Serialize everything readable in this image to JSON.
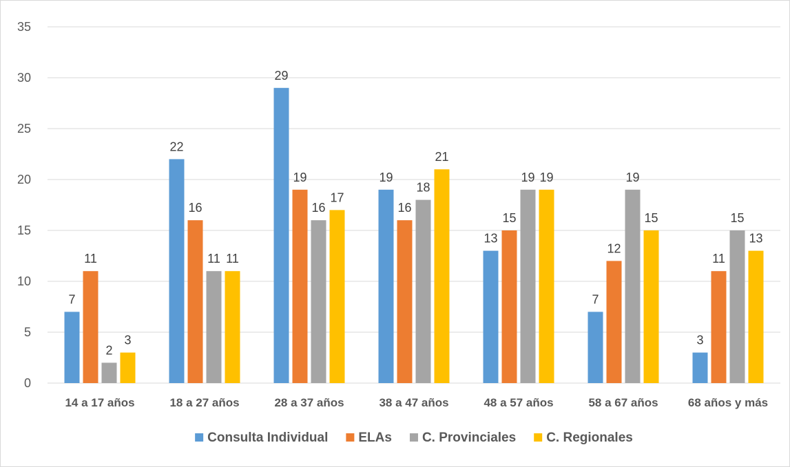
{
  "chart_data": {
    "type": "bar",
    "categories": [
      "14 a 17 años",
      "18 a 27 años",
      "28 a 37 años",
      "38 a 47 años",
      "48 a 57 años",
      "58 a 67 años",
      "68 años y más"
    ],
    "series": [
      {
        "name": "Consulta Individual",
        "color": "#5b9bd5",
        "values": [
          7,
          22,
          29,
          19,
          13,
          7,
          3
        ]
      },
      {
        "name": "ELAs",
        "color": "#ed7d31",
        "values": [
          11,
          16,
          19,
          16,
          15,
          12,
          11
        ]
      },
      {
        "name": "C. Provinciales",
        "color": "#a5a5a5",
        "values": [
          2,
          11,
          16,
          18,
          19,
          19,
          15
        ]
      },
      {
        "name": "C. Regionales",
        "color": "#ffc000",
        "values": [
          3,
          11,
          17,
          21,
          19,
          15,
          13
        ]
      }
    ],
    "ylim": [
      0,
      35
    ],
    "yticks": [
      0,
      5,
      10,
      15,
      20,
      25,
      30,
      35
    ],
    "grid": true,
    "legend": "bottom"
  }
}
